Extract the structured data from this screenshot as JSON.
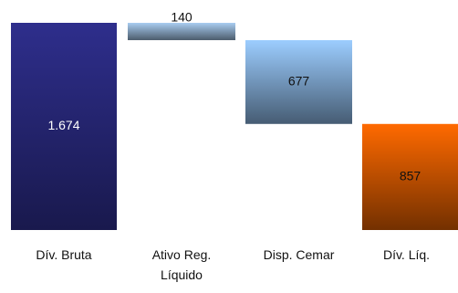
{
  "chart_data": {
    "type": "waterfall",
    "categories": [
      "Dív. Bruta",
      "Ativo Reg. Líquido",
      "Disp. Cemar",
      "Dív. Líq."
    ],
    "values": [
      1674,
      140,
      677,
      857
    ],
    "value_labels": [
      "1.674",
      "140",
      "677",
      "857"
    ],
    "measure": [
      "total",
      "decrease",
      "decrease",
      "total"
    ],
    "colors": [
      "#2e2e8c",
      "#a9cdf0",
      "#9ccdff",
      "#ff6a00"
    ]
  }
}
